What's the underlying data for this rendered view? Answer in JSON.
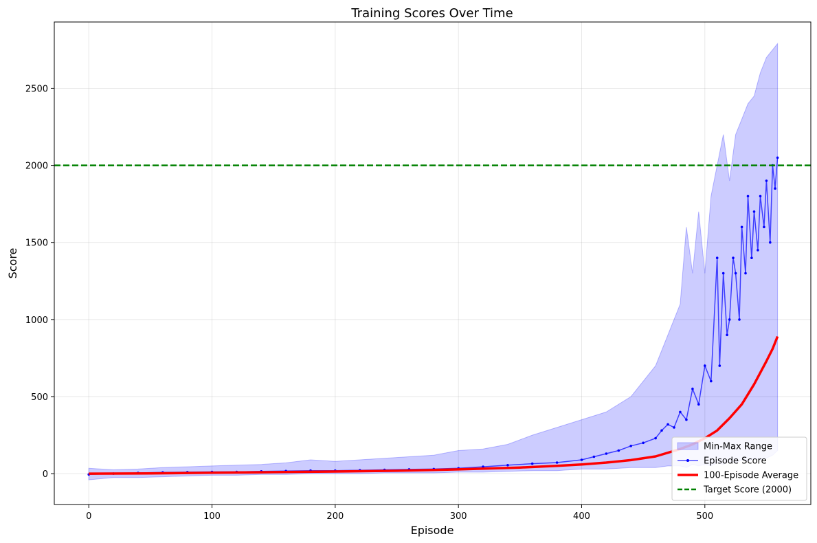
{
  "chart_data": {
    "type": "line",
    "title": "Training Scores Over Time",
    "xlabel": "Episode",
    "ylabel": "Score",
    "xlim": [
      -28,
      586
    ],
    "ylim": [
      -200,
      2930
    ],
    "xticks": [
      0,
      100,
      200,
      300,
      400,
      500
    ],
    "yticks": [
      0,
      500,
      1000,
      1500,
      2000,
      2500
    ],
    "grid": true,
    "legend_position": "lower-right",
    "target_score": 2000,
    "colors": {
      "episode": "#0000ff",
      "average": "#ff0000",
      "band": "#0000ff",
      "target": "#008000"
    },
    "legend": [
      {
        "key": "band",
        "label": "Min-Max Range"
      },
      {
        "key": "episode",
        "label": "Episode Score"
      },
      {
        "key": "average",
        "label": "100-Episode Average"
      },
      {
        "key": "target",
        "label": "Target Score (2000)"
      }
    ],
    "series": [
      {
        "name": "Episode Score",
        "x": [
          0,
          20,
          40,
          60,
          80,
          100,
          120,
          140,
          160,
          180,
          200,
          220,
          240,
          260,
          280,
          300,
          320,
          340,
          360,
          380,
          400,
          410,
          420,
          430,
          440,
          450,
          460,
          465,
          470,
          475,
          480,
          485,
          490,
          495,
          500,
          505,
          510,
          512,
          515,
          518,
          520,
          523,
          525,
          528,
          530,
          533,
          535,
          538,
          540,
          543,
          545,
          548,
          550,
          553,
          555,
          557,
          559
        ],
        "values": [
          -5,
          0,
          5,
          8,
          10,
          12,
          12,
          15,
          17,
          20,
          20,
          22,
          25,
          28,
          30,
          35,
          45,
          55,
          65,
          72,
          90,
          110,
          130,
          150,
          180,
          200,
          230,
          280,
          320,
          300,
          400,
          350,
          550,
          450,
          700,
          600,
          1400,
          700,
          1300,
          900,
          1000,
          1400,
          1300,
          1000,
          1600,
          1300,
          1800,
          1400,
          1700,
          1450,
          1800,
          1600,
          1900,
          1500,
          2000,
          1850,
          2050
        ]
      },
      {
        "name": "100-Episode Average",
        "x": [
          0,
          50,
          100,
          150,
          200,
          250,
          300,
          350,
          380,
          400,
          420,
          440,
          460,
          480,
          490,
          500,
          510,
          520,
          530,
          540,
          550,
          555,
          559
        ],
        "values": [
          0,
          2,
          6,
          10,
          14,
          19,
          28,
          40,
          51,
          60,
          72,
          88,
          112,
          160,
          190,
          230,
          280,
          360,
          450,
          580,
          730,
          810,
          890
        ]
      },
      {
        "name": "Min-Max Range",
        "x": [
          0,
          20,
          40,
          60,
          80,
          100,
          120,
          140,
          160,
          180,
          200,
          220,
          240,
          260,
          280,
          300,
          320,
          340,
          360,
          380,
          400,
          420,
          440,
          460,
          470,
          480,
          485,
          490,
          495,
          500,
          505,
          510,
          515,
          520,
          525,
          530,
          535,
          540,
          545,
          550,
          555,
          559
        ],
        "upper": [
          35,
          25,
          30,
          40,
          45,
          50,
          55,
          60,
          70,
          90,
          80,
          90,
          100,
          110,
          120,
          150,
          160,
          190,
          250,
          300,
          350,
          400,
          500,
          700,
          900,
          1100,
          1600,
          1300,
          1700,
          1300,
          1800,
          2000,
          2200,
          1900,
          2200,
          2300,
          2400,
          2450,
          2600,
          2700,
          2750,
          2790
        ],
        "lower": [
          -40,
          -25,
          -25,
          -20,
          -15,
          -10,
          -10,
          -5,
          -5,
          0,
          0,
          0,
          5,
          5,
          5,
          10,
          10,
          15,
          20,
          20,
          30,
          30,
          40,
          40,
          50,
          50,
          40,
          60,
          50,
          60,
          50,
          70,
          60,
          80,
          70,
          90,
          80,
          100,
          90,
          100,
          120,
          150
        ]
      }
    ]
  }
}
